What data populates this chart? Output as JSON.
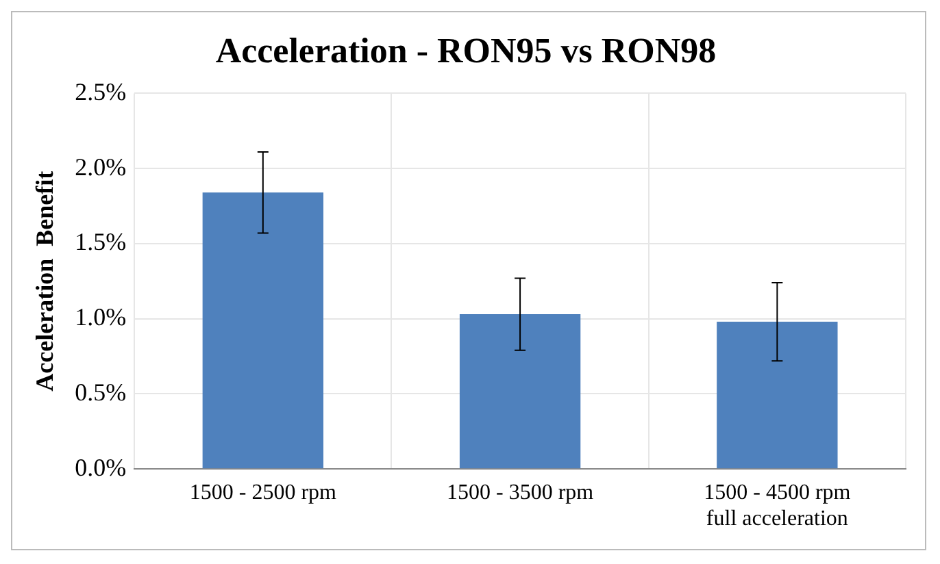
{
  "chart_data": {
    "type": "bar",
    "title": "Acceleration - RON95 vs RON98",
    "ylabel": "Acceleration  Benefit",
    "categories": [
      "1500 - 2500 rpm",
      "1500 - 3500 rpm",
      "1500 - 4500 rpm\nfull acceleration"
    ],
    "values": [
      1.84,
      1.03,
      0.98
    ],
    "color": "#4f81bd",
    "errors": [
      0.27,
      0.24,
      0.26
    ],
    "ylim": [
      0,
      2.5
    ],
    "yticks": [
      {
        "value": 0,
        "label": "0.0%"
      },
      {
        "value": 0.5,
        "label": "0.5%"
      },
      {
        "value": 1,
        "label": "1.0%"
      },
      {
        "value": 1.5,
        "label": "1.5%"
      },
      {
        "value": 2,
        "label": "2.0%"
      },
      {
        "value": 2.5,
        "label": "2.5%"
      }
    ],
    "grid": true
  }
}
